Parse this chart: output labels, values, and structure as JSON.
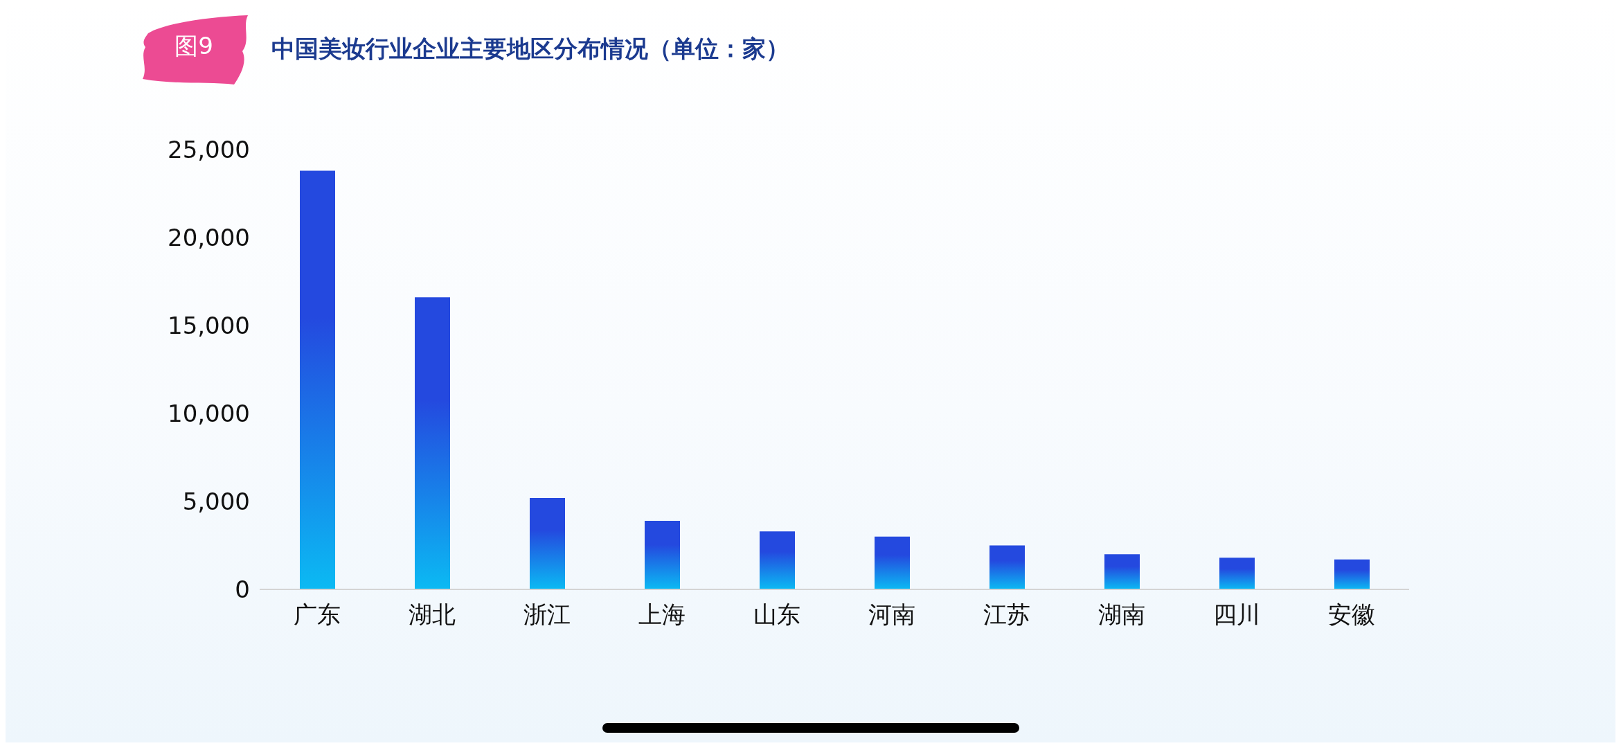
{
  "chart_data": {
    "type": "bar",
    "title": "中国美妆行业企业主要地区分布情况（单位：家）",
    "annotations": [
      "图9"
    ],
    "categories": [
      "广东",
      "湖北",
      "浙江",
      "上海",
      "山东",
      "河南",
      "江苏",
      "湖南",
      "四川",
      "安徽"
    ],
    "series": [
      {
        "color": "#2449df",
        "values": [
          23800,
          16600,
          5200,
          3900,
          3300,
          3000,
          2500,
          2000,
          1800,
          1700
        ]
      }
    ],
    "ylim": [
      0,
      25000
    ],
    "yticks": [
      {
        "value": 0,
        "label": "0"
      },
      {
        "value": 5000,
        "label": "5,000"
      },
      {
        "value": 10000,
        "label": "10,000"
      },
      {
        "value": 15000,
        "label": "15,000"
      },
      {
        "value": 20000,
        "label": "20,000"
      },
      {
        "value": 25000,
        "label": "25,000"
      }
    ]
  }
}
